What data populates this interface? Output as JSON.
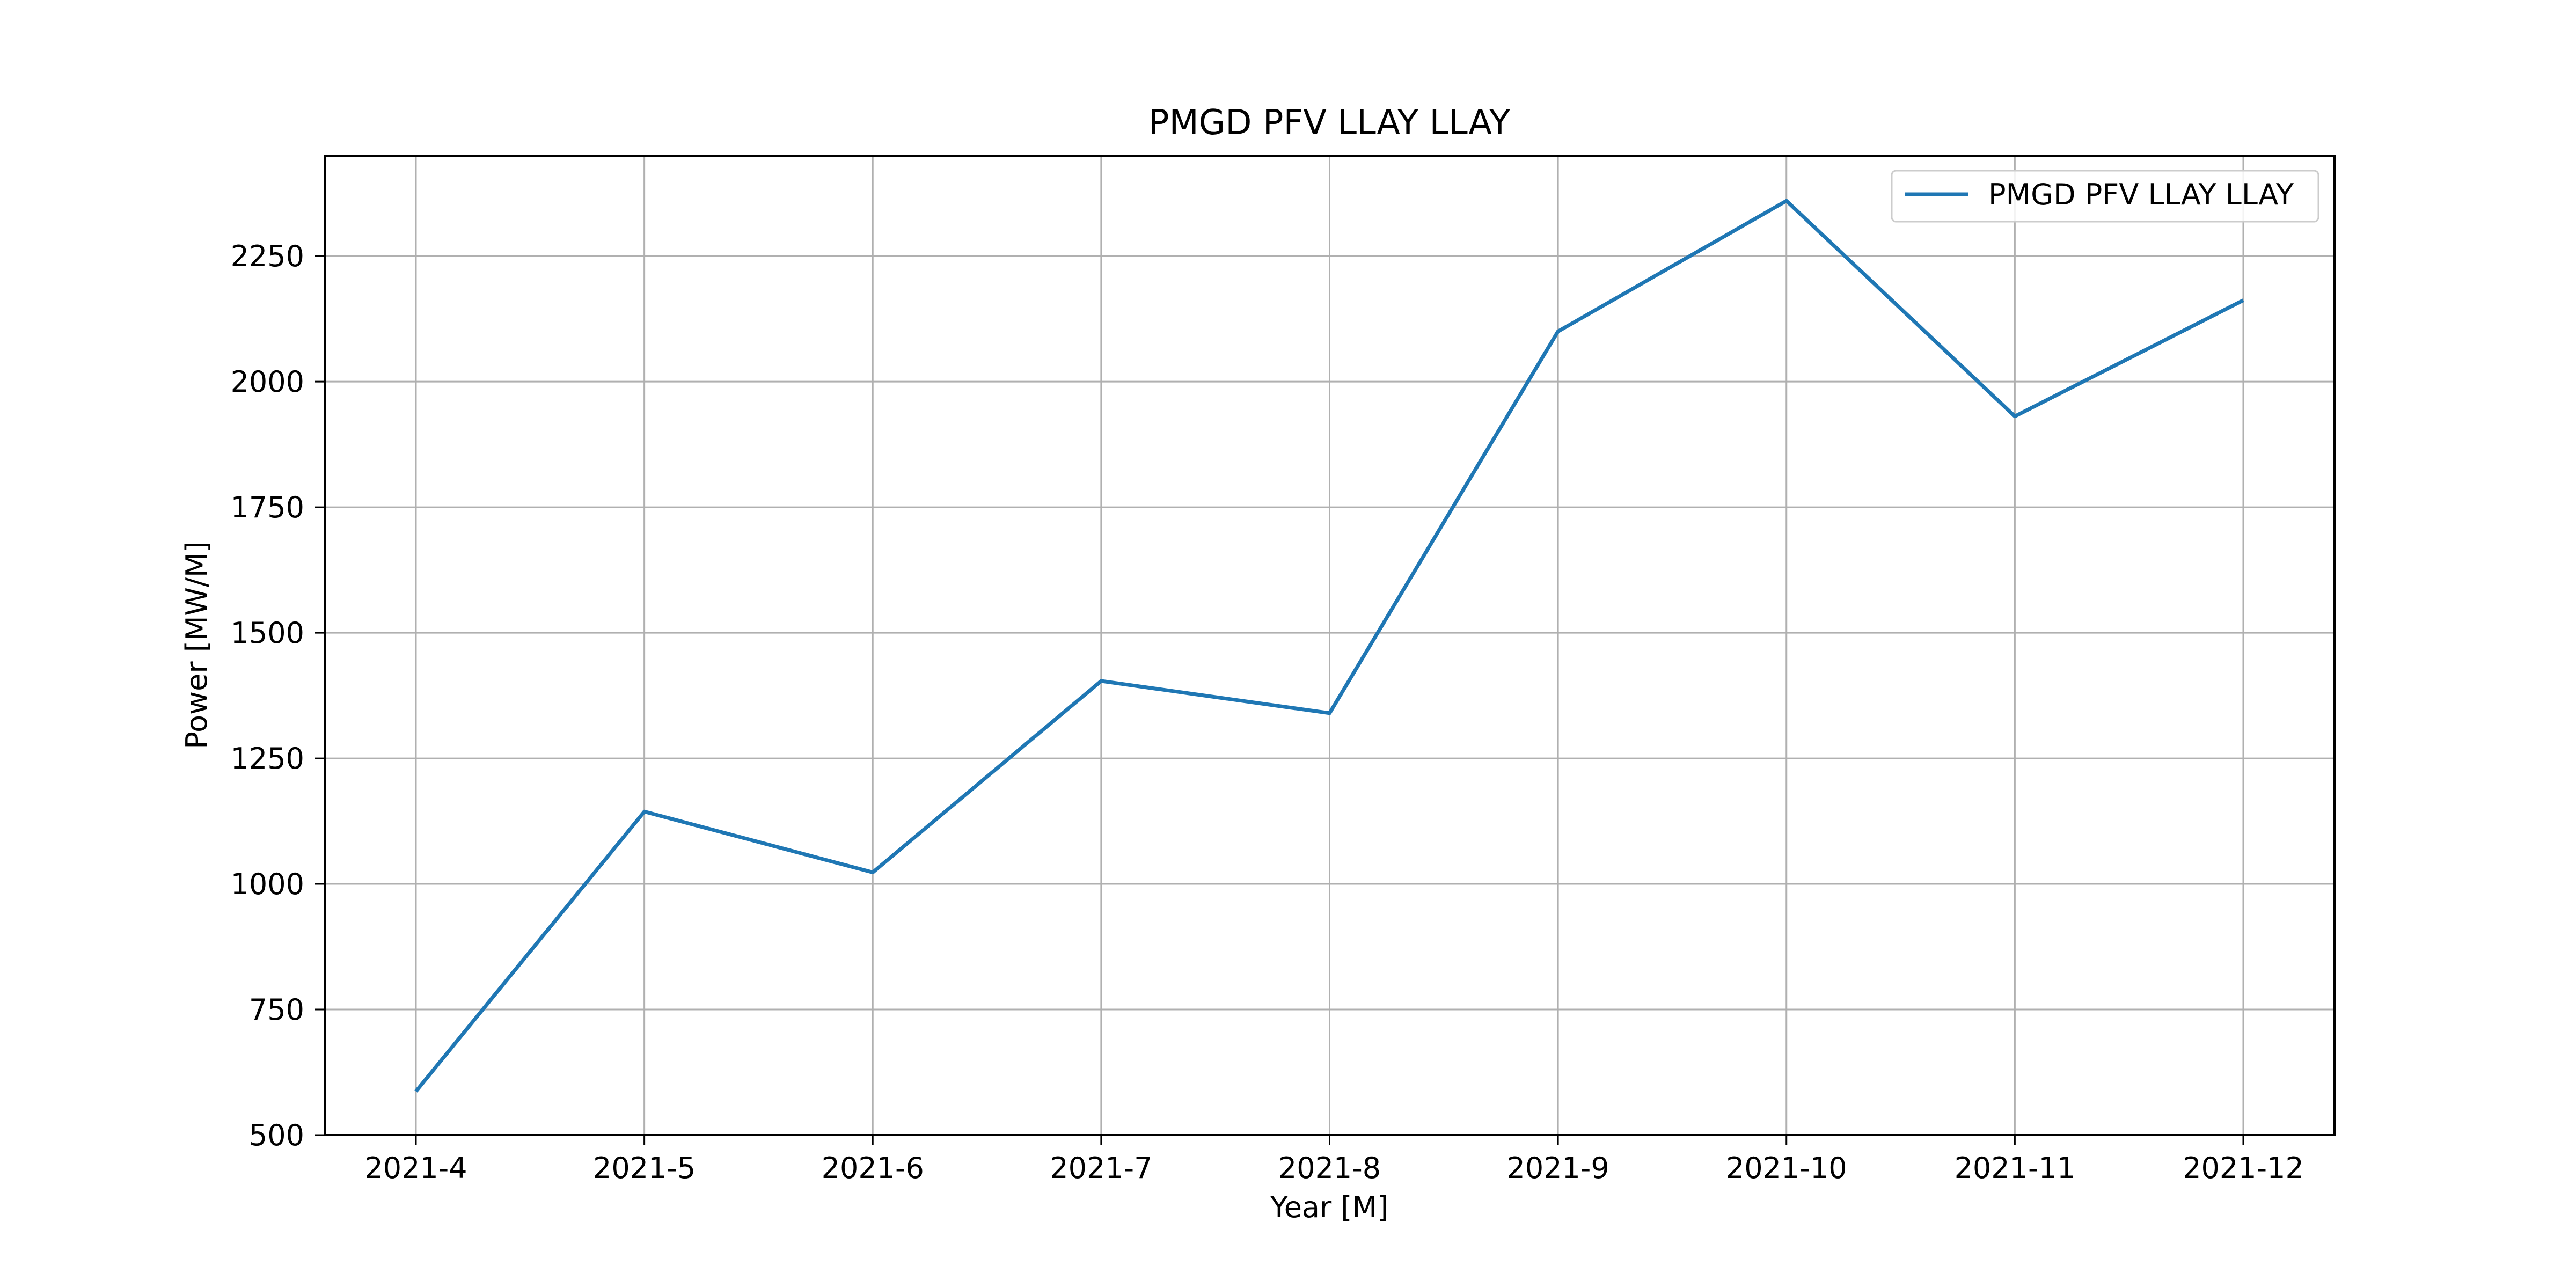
{
  "chart_data": {
    "type": "line",
    "title": "PMGD PFV LLAY LLAY",
    "xlabel": "Year [M]",
    "ylabel": "Power [MW/M]",
    "categories": [
      "2021-4",
      "2021-5",
      "2021-6",
      "2021-7",
      "2021-8",
      "2021-9",
      "2021-10",
      "2021-11",
      "2021-12"
    ],
    "series": [
      {
        "name": "PMGD PFV LLAY LLAY",
        "values": [
          587,
          1144,
          1023,
          1404,
          1340,
          2100,
          2360,
          1931,
          2162
        ],
        "color": "#1f77b4"
      }
    ],
    "ylim": [
      500,
      2450
    ],
    "yticks": [
      500,
      750,
      1000,
      1250,
      1500,
      1750,
      2000,
      2250
    ],
    "grid": true,
    "legend_position": "top-right"
  }
}
